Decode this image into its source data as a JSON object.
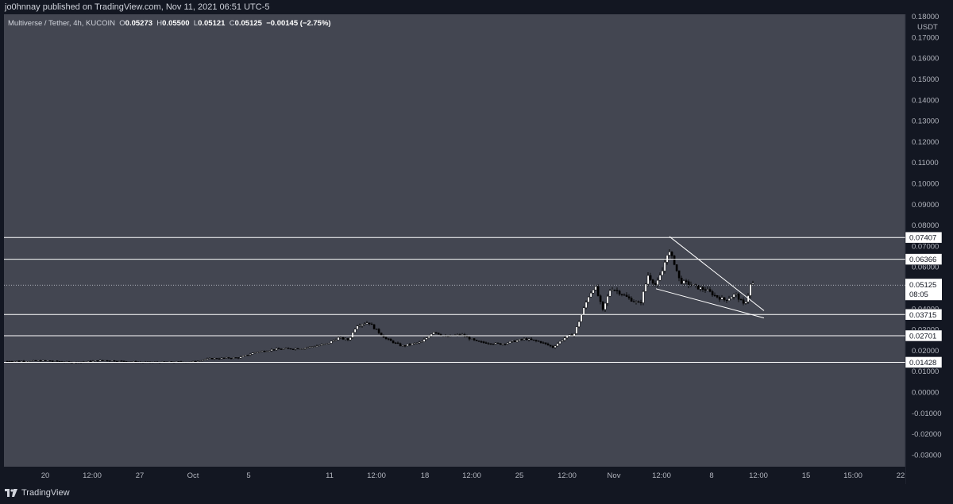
{
  "header": {
    "publish_line": "jo0hnnay published on TradingView.com, Nov 11, 2021 06:51 UTC-5"
  },
  "legend": {
    "symbol": "Multiverse / Tether, 4h, KUCOIN",
    "o_label": "O",
    "o_value": "0.05273",
    "h_label": "H",
    "h_value": "0.05500",
    "l_label": "L",
    "l_value": "0.05121",
    "c_label": "C",
    "c_value": "0.05125",
    "change": "−0.00145 (−2.75%)"
  },
  "footer": {
    "brand": "TradingView"
  },
  "chart_data": {
    "type": "candlestick",
    "title": "Multiverse / Tether, 4h, KUCOIN",
    "y_unit": "USDT",
    "ylim": [
      -0.035,
      0.18
    ],
    "y_ticks": [
      "0.18000",
      "0.17000",
      "0.16000",
      "0.15000",
      "0.14000",
      "0.13000",
      "0.12000",
      "0.11000",
      "0.10000",
      "0.09000",
      "0.08000",
      "0.07000",
      "0.06000",
      "0.05000",
      "0.04000",
      "0.03000",
      "0.02000",
      "0.01000",
      "0.00000",
      "-0.01000",
      "-0.02000",
      "-0.03000"
    ],
    "x_ticks": [
      "20",
      "12:00",
      "27",
      "Oct",
      "5",
      "11",
      "12:00",
      "18",
      "12:00",
      "25",
      "12:00",
      "Nov",
      "12:00",
      "8",
      "12:00",
      "15",
      "15:00",
      "22"
    ],
    "horizontal_levels": [
      "0.07407",
      "0.06366",
      "0.03715",
      "0.02701",
      "0.01428"
    ],
    "last_price": "0.05125",
    "countdown": "08:05",
    "grid": false,
    "candles_close_approx": [
      [
        "Sep 17",
        0.0148
      ],
      [
        "Sep 20",
        0.015
      ],
      [
        "Sep 27",
        0.0142
      ],
      [
        "Oct 1",
        0.0145
      ],
      [
        "Oct 5",
        0.0175
      ],
      [
        "Oct 8",
        0.02
      ],
      [
        "Oct 11",
        0.024
      ],
      [
        "Oct 13",
        0.033
      ],
      [
        "Oct 15",
        0.026
      ],
      [
        "Oct 18",
        0.027
      ],
      [
        "Oct 20",
        0.0265
      ],
      [
        "Oct 25",
        0.025
      ],
      [
        "Oct 28",
        0.023
      ],
      [
        "Oct 30",
        0.05
      ],
      [
        "Nov 1",
        0.045
      ],
      [
        "Nov 3",
        0.052
      ],
      [
        "Nov 4",
        0.074
      ],
      [
        "Nov 6",
        0.048
      ],
      [
        "Nov 8",
        0.044
      ],
      [
        "Nov 10",
        0.042
      ],
      [
        "Nov 11",
        0.0512
      ]
    ],
    "trendlines": [
      "falling wedge from Nov 4 peak to Nov 11"
    ]
  }
}
